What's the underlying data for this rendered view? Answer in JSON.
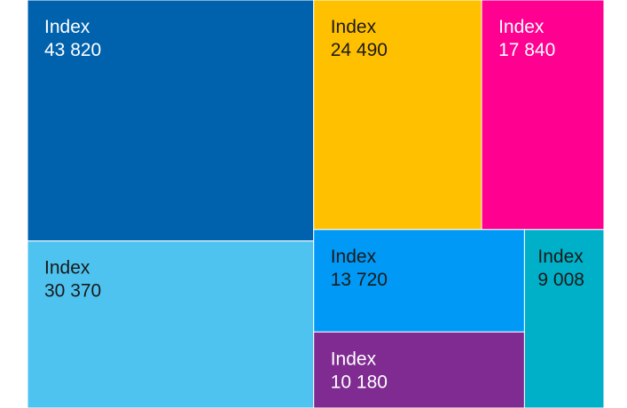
{
  "chart_data": {
    "type": "treemap",
    "categories": [
      "Index",
      "Index",
      "Index",
      "Index",
      "Index",
      "Index",
      "Index"
    ],
    "values": [
      43820,
      30370,
      24490,
      17840,
      13720,
      10180,
      9008
    ],
    "value_labels": [
      "43 820",
      "30 370",
      "24 490",
      "17 840",
      "13 720",
      "10 180",
      "9 008"
    ],
    "colors": [
      "#0061ad",
      "#4fc3f0",
      "#ffc000",
      "#ff0090",
      "#0099f5",
      "#7f2b91",
      "#00b0c8"
    ],
    "label_colors": [
      "#ffffff",
      "#1a1a1a",
      "#1a1a1a",
      "#ffffff",
      "#1a1a1a",
      "#ffffff",
      "#1a1a1a"
    ]
  }
}
